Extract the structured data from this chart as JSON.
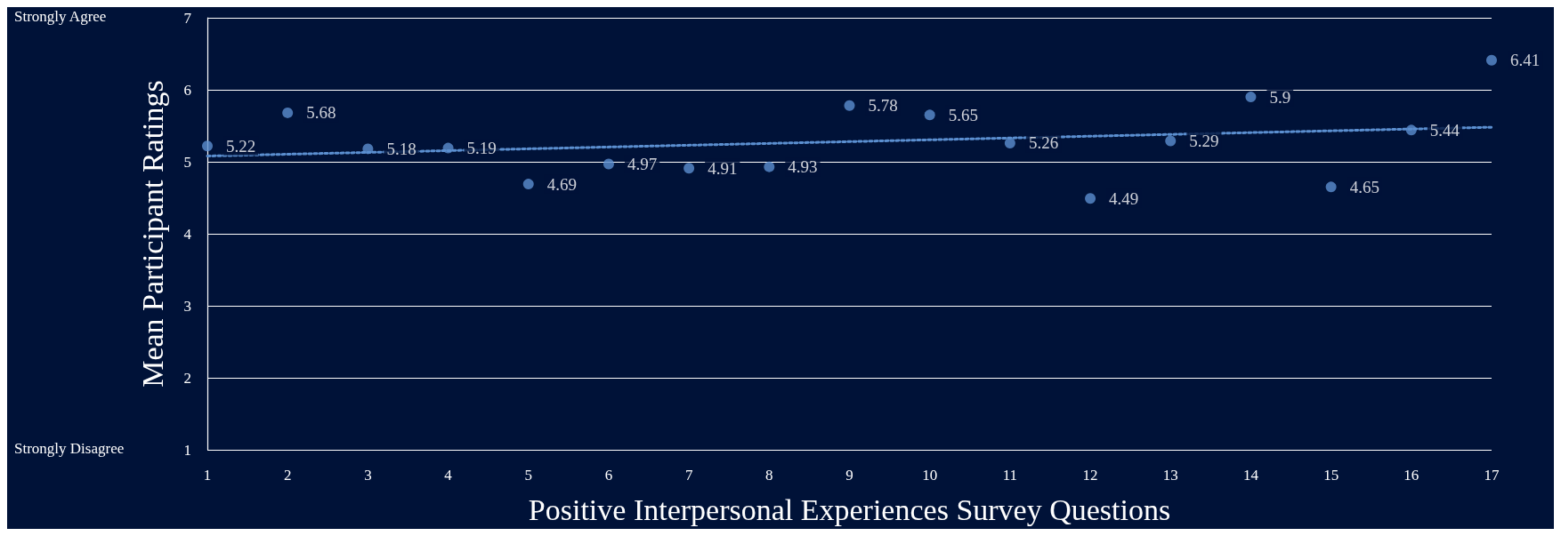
{
  "chart_data": {
    "type": "scatter",
    "xlabel": "Positive Interpersonal Experiences Survey Questions",
    "ylabel": "Mean Participant Ratings",
    "x": [
      1,
      2,
      3,
      4,
      5,
      6,
      7,
      8,
      9,
      10,
      11,
      12,
      13,
      14,
      15,
      16,
      17
    ],
    "series": [
      {
        "color": "#5b8fd0",
        "values": [
          5.22,
          5.68,
          5.18,
          5.19,
          4.69,
          4.97,
          4.91,
          4.93,
          5.78,
          5.65,
          5.26,
          4.49,
          5.29,
          5.9,
          4.65,
          5.44,
          6.41
        ],
        "value_labels": [
          "5.22",
          "5.68",
          "5.18",
          "5.19",
          "4.69",
          "4.97",
          "4.91",
          "4.93",
          "5.78",
          "5.65",
          "5.26",
          "4.49",
          "5.29",
          "5.9",
          "4.65",
          "5.44",
          "6.41"
        ],
        "marker": "circle"
      },
      {
        "type": "line",
        "color": "#5b8fd0",
        "x": [
          1,
          17
        ],
        "values": [
          5.08,
          5.48
        ],
        "line_style": "dotted",
        "marker": "none"
      }
    ],
    "xlim": [
      1,
      17
    ],
    "xticks": [
      1,
      2,
      3,
      4,
      5,
      6,
      7,
      8,
      9,
      10,
      11,
      12,
      13,
      14,
      15,
      16,
      17
    ],
    "ylim": [
      1,
      7
    ],
    "yticks": [
      1,
      2,
      3,
      4,
      5,
      6,
      7
    ],
    "grid": "y",
    "annotations": [
      "Strongly Agree",
      "Strongly Disagree"
    ]
  }
}
